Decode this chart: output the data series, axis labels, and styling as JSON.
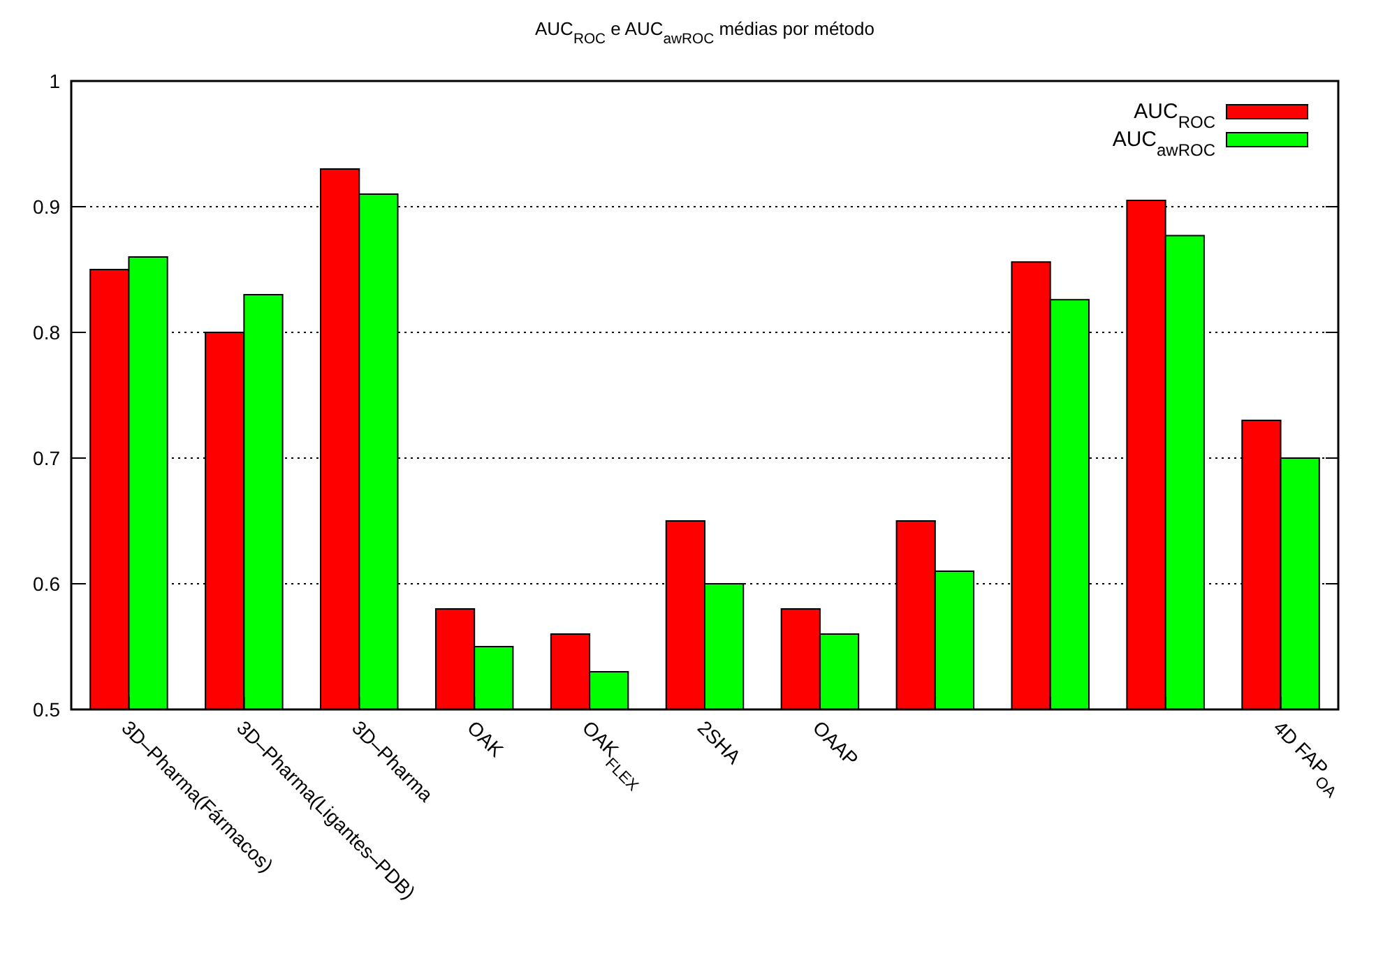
{
  "chart_data": {
    "type": "bar",
    "title": "AUC$_{ROC}$ e AUC$_{awROC}$ médias por método",
    "categories": [
      "3D–Pharma(Fármacos)",
      "3D–Pharma(Ligantes–PDB)",
      "3D–Pharma",
      "OAK",
      "OAK$_{FLEX}$",
      "2SHA",
      "OAAP",
      null,
      null,
      null,
      "4D FAP$_{OA}$"
    ],
    "series": [
      {
        "name": "AUC$_{ROC}$",
        "color": "#ff0000",
        "values": [
          0.85,
          0.8,
          0.93,
          0.58,
          0.56,
          0.65,
          0.58,
          0.65,
          0.856,
          0.905,
          0.73
        ]
      },
      {
        "name": "AUC$_{awROC}$",
        "color": "#00ff00",
        "values": [
          0.86,
          0.83,
          0.91,
          0.55,
          0.53,
          0.6,
          0.56,
          0.61,
          0.826,
          0.877,
          0.7
        ]
      }
    ],
    "ylim": [
      0.5,
      1
    ],
    "yticks": [
      0.5,
      0.6,
      0.7,
      0.8,
      0.9,
      1
    ],
    "grid": "y",
    "legend": "top right"
  }
}
